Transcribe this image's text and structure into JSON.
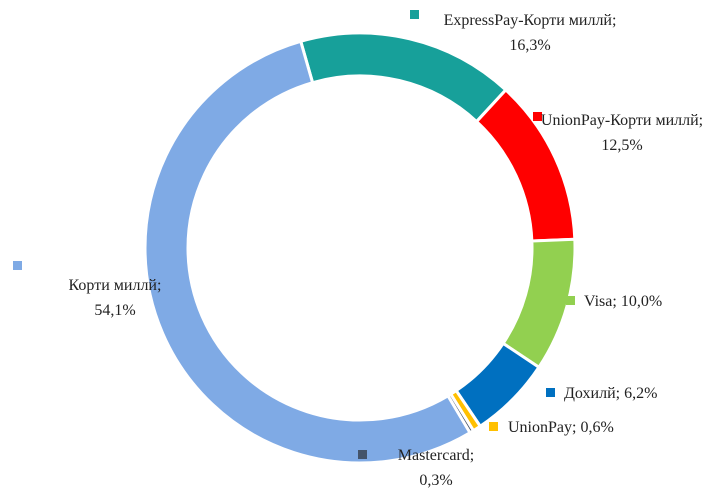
{
  "chart_data": {
    "type": "donut",
    "categories": [
      "ExpressPay-Корти миллй",
      "UnionPay-Корти миллй",
      "Visa",
      "Дохилй",
      "UnionPay",
      "Mastercard",
      "Корти миллй"
    ],
    "values": [
      16.3,
      12.5,
      10.0,
      6.2,
      0.6,
      0.3,
      54.1
    ],
    "value_labels": [
      "16,3%",
      "12,5%",
      "10,0%",
      "6,2%",
      "0,6%",
      "0,3%",
      "54,1%"
    ],
    "label_separator": ";",
    "colors": [
      "#17a09a",
      "#ff0000",
      "#92d050",
      "#0070c0",
      "#ffc000",
      "#44546a",
      "#7faae5"
    ]
  }
}
